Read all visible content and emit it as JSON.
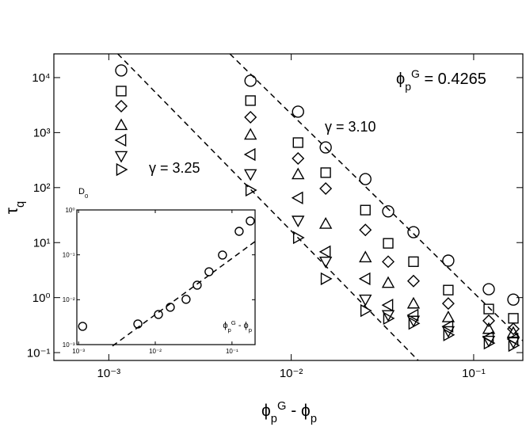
{
  "chart_data": [
    {
      "type": "scatter",
      "log_x": true,
      "log_y": true,
      "x_label": [
        {
          "t": "ϕ"
        },
        {
          "t": "p",
          "s": "sub"
        },
        {
          "t": "G",
          "s": "sup"
        },
        {
          "t": " - ϕ"
        },
        {
          "t": "p",
          "s": "sub"
        }
      ],
      "y_label": [
        {
          "t": "τ"
        },
        {
          "t": "q",
          "s": "sub"
        }
      ],
      "xlim": [
        0.0005,
        0.186
      ],
      "ylim": [
        0.072,
        27000
      ],
      "xticks": [
        {
          "value": 0.001,
          "label": "10⁻³"
        },
        {
          "value": 0.01,
          "label": "10⁻²"
        },
        {
          "value": 0.1,
          "label": "10⁻¹"
        }
      ],
      "yticks": [
        {
          "value": 0.1,
          "label": "10⁻¹"
        },
        {
          "value": 1,
          "label": "10⁰"
        },
        {
          "value": 10,
          "label": "10¹"
        },
        {
          "value": 100,
          "label": "10²"
        },
        {
          "value": 1000,
          "label": "10³"
        },
        {
          "value": 10000,
          "label": "10⁴"
        }
      ],
      "x": [
        0.00117,
        0.00598,
        0.0109,
        0.01545,
        0.0255,
        0.034,
        0.0468,
        0.0726,
        0.121,
        0.165
      ],
      "series": [
        {
          "marker": "circle",
          "color": "#000000",
          "values": [
            13500,
            8750,
            2400,
            539,
            143,
            37,
            15.5,
            4.7,
            1.42,
            0.92
          ]
        },
        {
          "marker": "square",
          "color": "#000000",
          "values": [
            5690,
            3820,
            658,
            187,
            39,
            9.7,
            4.5,
            1.37,
            0.62,
            0.42
          ]
        },
        {
          "marker": "diamond",
          "color": "#000000",
          "values": [
            3030,
            1900,
            339,
            96,
            17,
            4.5,
            2.0,
            0.78,
            0.38,
            0.27
          ]
        },
        {
          "marker": "triangle-up",
          "color": "#000000",
          "values": [
            1370,
            918,
            175,
            22,
            5.4,
            1.85,
            0.78,
            0.44,
            0.27,
            0.23
          ]
        },
        {
          "marker": "triangle-left",
          "color": "#000000",
          "values": [
            728,
            400,
            65,
            6.8,
            2.2,
            0.73,
            0.48,
            0.3,
            0.19,
            0.176
          ]
        },
        {
          "marker": "triangle-down",
          "color": "#000000",
          "values": [
            374,
            175,
            25,
            4.5,
            0.92,
            0.48,
            0.38,
            0.245,
            0.164,
            0.154
          ]
        },
        {
          "marker": "triangle-right",
          "color": "#000000",
          "values": [
            213,
            90,
            12.3,
            2.2,
            0.58,
            0.42,
            0.34,
            0.21,
            0.149,
            0.135
          ]
        }
      ],
      "fit_lines": [
        {
          "color": "#000000",
          "dashed": true,
          "x": [
            0.00112,
            0.0497
          ],
          "y": [
            27000,
            0.0718
          ]
        },
        {
          "color": "#000000",
          "dashed": true,
          "x": [
            0.00461,
            0.186
          ],
          "y": [
            27000,
            0.164
          ]
        }
      ],
      "annotations": [
        [
          {
            "t": "γ = 3.25"
          }
        ],
        [
          {
            "t": "γ = 3.10"
          }
        ],
        [
          {
            "t": "ϕ"
          },
          {
            "t": "p",
            "s": "sub"
          },
          {
            "t": "G",
            "s": "sup"
          },
          {
            "t": " = 0.4265"
          }
        ]
      ]
    },
    {
      "type": "scatter",
      "log_x": true,
      "log_y": true,
      "x_label": [
        {
          "t": "ϕ"
        },
        {
          "t": "p",
          "s": "sub"
        },
        {
          "t": "G",
          "s": "sup"
        },
        {
          "t": " - ϕ"
        },
        {
          "t": "p",
          "s": "sub"
        }
      ],
      "y_label": [
        {
          "t": "D"
        },
        {
          "t": "0",
          "s": "sub"
        }
      ],
      "xlim": [
        0.00095,
        0.2
      ],
      "ylim": [
        0.001,
        1
      ],
      "xticks": [
        {
          "value": 0.001,
          "label": "10⁻³"
        },
        {
          "value": 0.01,
          "label": "10⁻²"
        },
        {
          "value": 0.1,
          "label": "10⁻¹"
        }
      ],
      "yticks": [
        {
          "value": 0.001,
          "label": "10⁻³"
        },
        {
          "value": 0.01,
          "label": "10⁻²"
        },
        {
          "value": 0.1,
          "label": "10⁻¹"
        },
        {
          "value": 1,
          "label": "10⁰"
        }
      ],
      "x": [
        0.00113,
        0.00593,
        0.011,
        0.0157,
        0.0252,
        0.0352,
        0.0502,
        0.0752,
        0.124,
        0.173
      ],
      "series": [
        {
          "marker": "circle",
          "color": "#000000",
          "values": [
            0.00255,
            0.00288,
            0.0047,
            0.0068,
            0.0102,
            0.0211,
            0.042,
            0.0989,
            0.334,
            0.567
          ]
        }
      ],
      "fit_lines": [
        {
          "color": "#000000",
          "dashed": true,
          "x": [
            0.00277,
            0.199
          ],
          "y": [
            0.00093,
            0.197
          ]
        }
      ]
    }
  ]
}
